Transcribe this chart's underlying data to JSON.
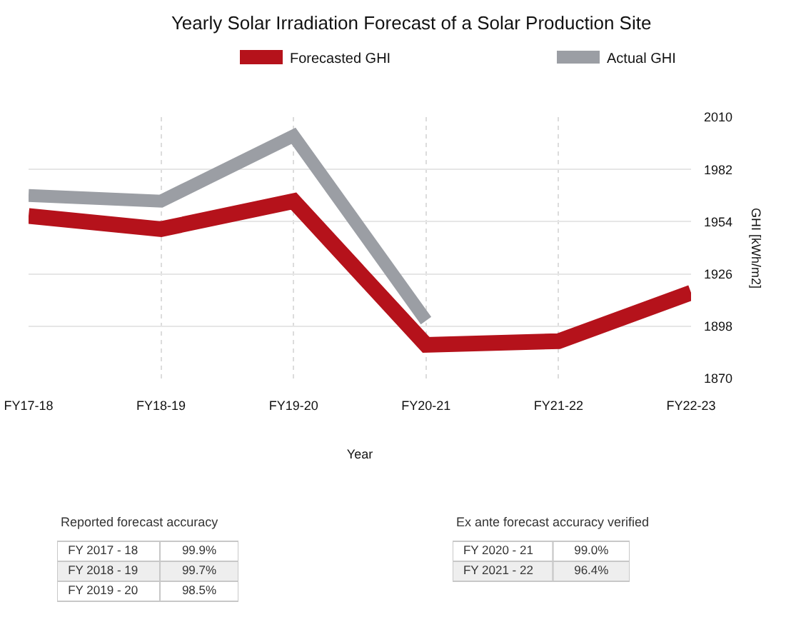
{
  "chart_data": [
    {
      "type": "line",
      "title": "Yearly Solar Irradiation Forecast of a Solar Production Site",
      "xlabel": "Year",
      "ylabel": "GHI [kWh/m2]",
      "categories": [
        "FY17-18",
        "FY18-19",
        "FY19-20",
        "FY20-21",
        "FY21-22",
        "FY22-23"
      ],
      "series": [
        {
          "name": "Forecasted GHI",
          "color": "#b5121b",
          "values": [
            1957,
            1950,
            1965,
            1888,
            1890,
            1916
          ]
        },
        {
          "name": "Actual GHI",
          "color": "#9b9ea4",
          "values": [
            1968,
            1965,
            2000,
            1901,
            null,
            null
          ]
        }
      ],
      "ylim": [
        1870,
        2010
      ],
      "yticks": [
        1870,
        1898,
        1926,
        1954,
        1982,
        2010
      ],
      "grid": true,
      "legend": "top",
      "line_style": "solid"
    },
    {
      "type": "other",
      "title": "Reported forecast accuracy",
      "categories": [
        "FY 2017 - 18",
        "FY 2018 - 19",
        "FY 2019 - 20"
      ],
      "value_labels": [
        "99.9%",
        "99.7%",
        "98.5%"
      ]
    },
    {
      "type": "other",
      "title": "Ex ante forecast accuracy verified",
      "categories": [
        "FY 2020 - 21",
        "FY 2021 - 22"
      ],
      "value_labels": [
        "99.0%",
        "96.4%"
      ]
    }
  ]
}
